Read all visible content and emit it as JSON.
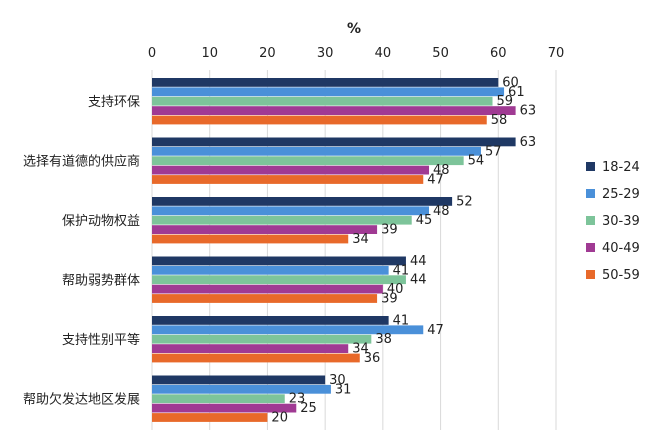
{
  "chart_data": {
    "type": "bar",
    "orientation": "horizontal",
    "xlabel": "%",
    "xlim": [
      0,
      70
    ],
    "xticks": [
      0,
      10,
      20,
      30,
      40,
      50,
      60,
      70
    ],
    "axis_position": "top",
    "grid": true,
    "legend_position": "right",
    "categories": [
      "支持环保",
      "选择有道德的供应商",
      "保护动物权益",
      "帮助弱势群体",
      "支持性别平等",
      "帮助欠发达地区发展"
    ],
    "series": [
      {
        "name": "18-24",
        "color": "#1f3864",
        "values": [
          60,
          63,
          52,
          44,
          41,
          30
        ]
      },
      {
        "name": "25-29",
        "color": "#4a90d9",
        "values": [
          61,
          57,
          48,
          41,
          47,
          31
        ]
      },
      {
        "name": "30-39",
        "color": "#7dc49a",
        "values": [
          59,
          54,
          45,
          44,
          38,
          23
        ]
      },
      {
        "name": "40-49",
        "color": "#a03a93",
        "values": [
          63,
          48,
          39,
          40,
          34,
          25
        ]
      },
      {
        "name": "50-59",
        "color": "#e8692a",
        "values": [
          58,
          47,
          34,
          39,
          36,
          20
        ]
      }
    ]
  }
}
